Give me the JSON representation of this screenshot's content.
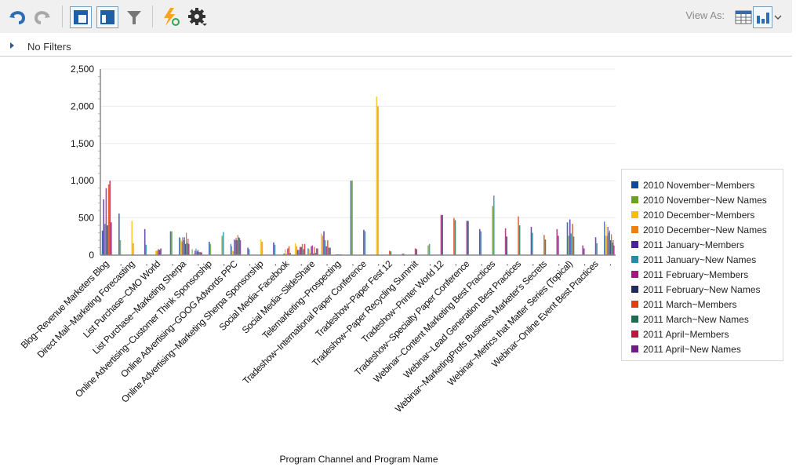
{
  "toolbar": {
    "icons": [
      "undo-icon",
      "redo-icon",
      "layout-top-icon",
      "layout-left-icon",
      "filter-icon",
      "lightning-refresh-icon",
      "gear-icon"
    ],
    "view_as_label": "View As:",
    "view_options": [
      "table-icon",
      "bar-chart-icon"
    ],
    "selected_view": "bar-chart-icon"
  },
  "filters": {
    "label": "No Filters"
  },
  "chart_data": {
    "type": "bar",
    "xlabel": "Program Channel and Program Name",
    "ylabel": "",
    "ylim": [
      0,
      2500
    ],
    "yticks": [
      "0",
      "500",
      "1,000",
      "1,500",
      "2,000",
      "2,500"
    ],
    "grid": true,
    "legend_position": "right",
    "categories": [
      "Blog~Revenue Marketers Blog",
      ".",
      "Direct Mail~Marketing Forecasting",
      ".",
      "List Purchase~CMO World",
      ".",
      "List Purchase~Marketing Sherpa",
      ".",
      "Online Advertising~Customer Think Sponsorship",
      ".",
      "Online Advertising~GOOG Adwords PPC",
      ".",
      "Online Advertising~Marketing Sherpa Sponsorship",
      ".",
      "Social Media~Facebook",
      ".",
      "Social Media~SlideShare",
      ".",
      "Telemarketing~Prospecting",
      ".",
      "Tradeshow~International Paper Conference",
      ".",
      "Tradeshow~Paper Fest 12",
      ".",
      "Tradeshow~Paper Recycling Summit",
      ".",
      "Tradeshow~Printer World 12",
      ".",
      "Tradeshow~Specialty Paper Conference",
      ".",
      "Webinar~Content Marketing Best Practices",
      ".",
      "Webinar~Lead Generation Best Practices",
      ".",
      "Webinar~MarketingProfs Business Marketer's Secrets",
      ".",
      "Webinar~Metrics that Matter Series (Topical)",
      ".",
      "Webinar~Online Event Best Practices",
      "."
    ],
    "series": [
      {
        "name": "2010 November~Members",
        "color": "#0b4aa2",
        "values": [
          330,
          560,
          0,
          0,
          0,
          320,
          240,
          0,
          180,
          0,
          150,
          0,
          0,
          0,
          20,
          0,
          90,
          0,
          10,
          1000,
          0,
          0,
          0,
          0,
          0,
          0,
          0,
          0,
          0,
          0,
          0,
          0,
          0,
          0,
          0,
          0,
          440,
          0,
          0,
          450
        ]
      },
      {
        "name": "2010 November~New Names",
        "color": "#6aa121",
        "values": [
          0,
          200,
          0,
          0,
          0,
          320,
          230,
          80,
          150,
          260,
          120,
          0,
          0,
          0,
          0,
          0,
          0,
          0,
          0,
          1000,
          0,
          0,
          0,
          0,
          0,
          130,
          0,
          0,
          0,
          0,
          660,
          0,
          0,
          0,
          0,
          0,
          260,
          0,
          0,
          260
        ]
      },
      {
        "name": "2010 December~Members",
        "color": "#f5c000",
        "values": [
          0,
          0,
          460,
          0,
          60,
          0,
          200,
          10,
          0,
          0,
          60,
          0,
          210,
          0,
          80,
          160,
          80,
          290,
          0,
          0,
          0,
          2130,
          0,
          0,
          0,
          0,
          0,
          0,
          0,
          0,
          0,
          0,
          0,
          0,
          0,
          0,
          0,
          0,
          0,
          410
        ]
      },
      {
        "name": "2010 December~New Names",
        "color": "#f07f09",
        "values": [
          0,
          0,
          160,
          0,
          60,
          0,
          180,
          20,
          0,
          0,
          50,
          0,
          180,
          0,
          20,
          120,
          30,
          260,
          0,
          0,
          0,
          2000,
          0,
          0,
          0,
          0,
          0,
          0,
          0,
          0,
          0,
          0,
          0,
          0,
          0,
          0,
          0,
          0,
          0,
          260
        ]
      },
      {
        "name": "2011 January~Members",
        "color": "#4b2299",
        "values": [
          750,
          0,
          0,
          350,
          0,
          0,
          240,
          60,
          0,
          0,
          210,
          100,
          0,
          170,
          0,
          70,
          120,
          320,
          10,
          0,
          340,
          0,
          0,
          0,
          0,
          0,
          0,
          0,
          0,
          350,
          0,
          0,
          0,
          380,
          0,
          0,
          480,
          0,
          240,
          380
        ]
      },
      {
        "name": "2011 January~New Names",
        "color": "#1d8fa6",
        "values": [
          420,
          0,
          0,
          140,
          0,
          0,
          200,
          90,
          0,
          310,
          200,
          80,
          0,
          140,
          0,
          70,
          0,
          200,
          0,
          0,
          320,
          0,
          0,
          0,
          0,
          150,
          0,
          0,
          0,
          320,
          800,
          0,
          0,
          300,
          0,
          0,
          290,
          0,
          160,
          300
        ]
      },
      {
        "name": "2011 February~Members",
        "color": "#a8177d",
        "values": [
          900,
          0,
          0,
          0,
          80,
          0,
          240,
          50,
          0,
          0,
          230,
          0,
          0,
          0,
          90,
          110,
          130,
          120,
          10,
          0,
          0,
          0,
          0,
          0,
          0,
          0,
          540,
          0,
          460,
          0,
          0,
          360,
          0,
          0,
          0,
          350,
          0,
          130,
          0,
          330
        ]
      },
      {
        "name": "2011 February~New Names",
        "color": "#1f2c5c",
        "values": [
          400,
          0,
          0,
          0,
          70,
          0,
          150,
          70,
          0,
          0,
          200,
          0,
          0,
          0,
          0,
          110,
          20,
          0,
          0,
          0,
          0,
          0,
          0,
          0,
          0,
          0,
          540,
          0,
          460,
          0,
          0,
          250,
          0,
          0,
          0,
          0,
          0,
          0,
          0,
          200
        ]
      },
      {
        "name": "2011 March~Members",
        "color": "#e0410b",
        "values": [
          950,
          0,
          0,
          0,
          0,
          0,
          300,
          45,
          0,
          0,
          270,
          0,
          0,
          0,
          120,
          150,
          110,
          200,
          10,
          0,
          0,
          0,
          60,
          20,
          0,
          0,
          0,
          500,
          0,
          0,
          0,
          0,
          520,
          0,
          270,
          0,
          420,
          0,
          0,
          280
        ]
      },
      {
        "name": "2011 March~New Names",
        "color": "#1e6b4f",
        "values": [
          0,
          0,
          0,
          0,
          0,
          0,
          160,
          40,
          0,
          0,
          240,
          0,
          0,
          0,
          30,
          80,
          30,
          100,
          0,
          0,
          0,
          0,
          50,
          20,
          0,
          0,
          0,
          470,
          0,
          0,
          0,
          0,
          400,
          0,
          210,
          0,
          250,
          0,
          0,
          170
        ]
      },
      {
        "name": "2011 April~Members",
        "color": "#c0143c",
        "values": [
          1000,
          0,
          0,
          0,
          0,
          0,
          220,
          40,
          0,
          0,
          230,
          0,
          0,
          0,
          0,
          150,
          90,
          0,
          10,
          0,
          0,
          0,
          0,
          0,
          90,
          0,
          0,
          0,
          0,
          0,
          0,
          0,
          0,
          0,
          0,
          0,
          0,
          0,
          0,
          200
        ]
      },
      {
        "name": "2011 April~New Names",
        "color": "#6c1f8c",
        "values": [
          440,
          0,
          0,
          0,
          90,
          0,
          150,
          35,
          0,
          0,
          200,
          0,
          0,
          0,
          0,
          0,
          90,
          100,
          0,
          0,
          0,
          0,
          0,
          0,
          80,
          0,
          0,
          0,
          0,
          0,
          0,
          0,
          0,
          0,
          0,
          260,
          0,
          90,
          0,
          130
        ]
      }
    ]
  }
}
